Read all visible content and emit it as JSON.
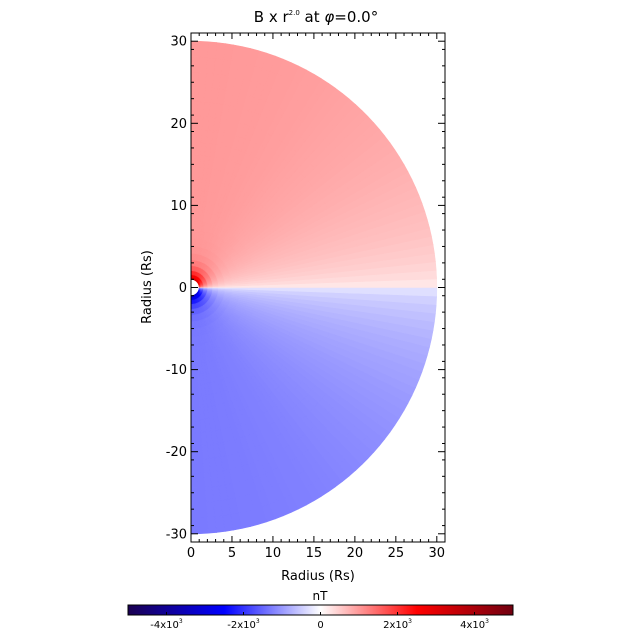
{
  "chart_data": {
    "type": "heatmap",
    "title": {
      "prefix": "B",
      "middle": " x r",
      "exponent": "2.0",
      "suffix_a": " at ",
      "phi": "φ",
      "suffix_b": "=0.0°"
    },
    "xlabel": "Radius (Rs)",
    "ylabel": "Radius (Rs)",
    "xlim": [
      0,
      31
    ],
    "ylim": [
      -31,
      31
    ],
    "x_ticks": [
      {
        "value": 0,
        "label": "0"
      },
      {
        "value": 5,
        "label": "5"
      },
      {
        "value": 10,
        "label": "10"
      },
      {
        "value": 15,
        "label": "15"
      },
      {
        "value": 20,
        "label": "20"
      },
      {
        "value": 25,
        "label": "25"
      },
      {
        "value": 30,
        "label": "30"
      }
    ],
    "y_ticks": [
      {
        "value": 30,
        "label": "30"
      },
      {
        "value": 20,
        "label": "20"
      },
      {
        "value": 10,
        "label": "10"
      },
      {
        "value": 0,
        "label": "0"
      },
      {
        "value": -10,
        "label": "-10"
      },
      {
        "value": -20,
        "label": "-20"
      },
      {
        "value": -30,
        "label": "-30"
      }
    ],
    "domain": {
      "shape": "half-disk",
      "inner_radius": 1,
      "outer_radius": 30
    },
    "field": {
      "description_values": "positive in northern hemisphere, negative in southern; near-zero along the equator",
      "north_far_value": 1000,
      "south_far_value": -1300,
      "near_sun_value_north": 3600,
      "near_sun_value_south": -3600
    },
    "colorbar": {
      "label": "nT",
      "range": [
        -5000,
        5000
      ],
      "colors": [
        "#1a0050",
        "#0000ff",
        "#ffffff",
        "#ff0000",
        "#700010"
      ],
      "ticks": [
        {
          "value": -4000,
          "mantissa": "-4x10",
          "exp": "3"
        },
        {
          "value": -2000,
          "mantissa": "-2x10",
          "exp": "3"
        },
        {
          "value": 0,
          "mantissa": "0",
          "exp": ""
        },
        {
          "value": 2000,
          "mantissa": "2x10",
          "exp": "3"
        },
        {
          "value": 4000,
          "mantissa": "4x10",
          "exp": "3"
        }
      ]
    }
  }
}
